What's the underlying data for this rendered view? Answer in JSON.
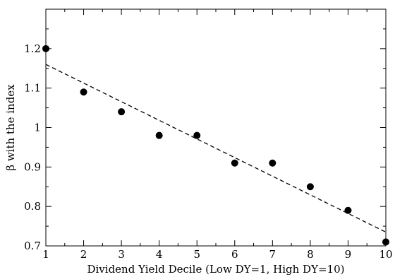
{
  "chart_data": {
    "type": "scatter",
    "title": "",
    "xlabel": "Dividend Yield Decile (Low DY=1, High DY=10)",
    "ylabel": "β with the index",
    "xlim": [
      1,
      10
    ],
    "ylim": [
      0.7,
      1.3
    ],
    "x_ticks": [
      1,
      2,
      3,
      4,
      5,
      6,
      7,
      8,
      9,
      10
    ],
    "x_tick_labels": [
      "1",
      "2",
      "3",
      "4",
      "5",
      "6",
      "7",
      "8",
      "9",
      "10"
    ],
    "y_ticks": [
      0.7,
      0.8,
      0.9,
      1.0,
      1.1,
      1.2
    ],
    "y_tick_labels": [
      "0.7",
      "0.8",
      "0.9",
      "1",
      "1.1",
      "1.2"
    ],
    "grid": false,
    "legend": "none",
    "series": [
      {
        "x": [
          1,
          2,
          3,
          4,
          5,
          6,
          7,
          8,
          9,
          10
        ],
        "values": [
          1.2,
          1.09,
          1.04,
          0.98,
          0.98,
          0.91,
          0.91,
          0.85,
          0.79,
          0.71
        ],
        "marker": "circle",
        "color": "#000000"
      }
    ],
    "fit_line": {
      "x": [
        1,
        10
      ],
      "values": [
        1.16,
        0.735
      ],
      "style": "dashed",
      "color": "#000000"
    }
  }
}
